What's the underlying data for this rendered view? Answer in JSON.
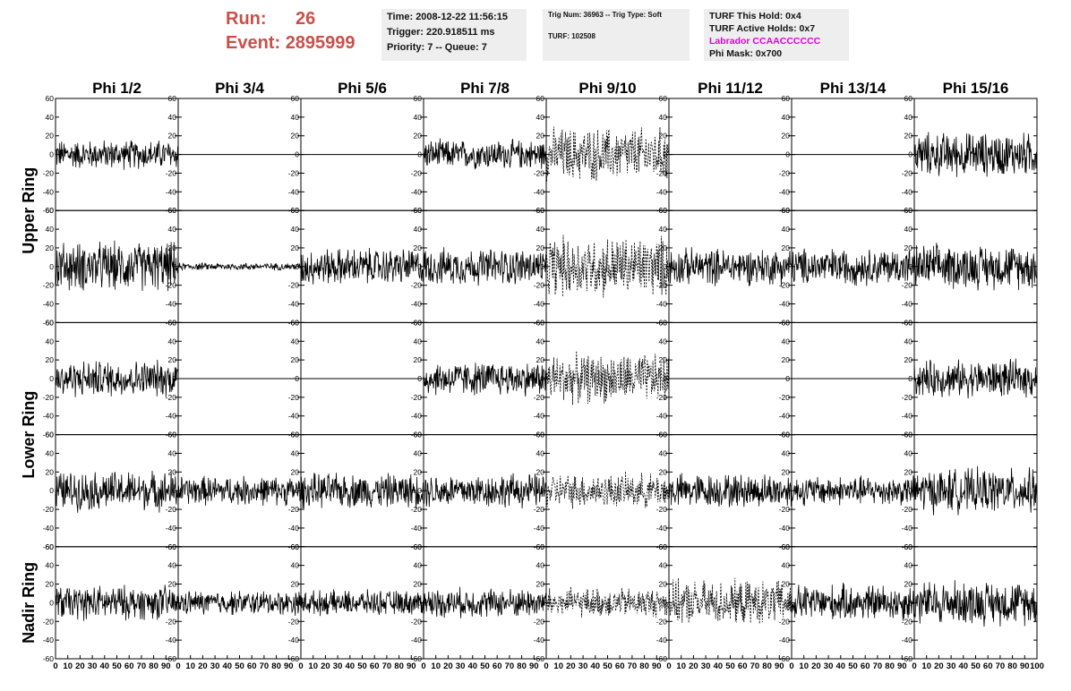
{
  "header": {
    "run_label": "Run:",
    "run_value": "26",
    "event_label": "Event:",
    "event_value": "2895999",
    "time_line": "Time: 2008-12-22 11:56:15",
    "trigger_line": "Trigger: 220.918511 ms",
    "priority_line": "Priority: 7 -- Queue: 7",
    "trig_num_line": "Trig Num: 36963 -- Trig Type: Soft",
    "turf_line": "TURF: 102508",
    "turf_hold_line": "TURF This Hold: 0x4",
    "turf_active_line": "TURF Active Holds: 0x7",
    "labrador_line": "Labrador CCAACCCCCC",
    "phi_mask_line": "Phi Mask: 0x700"
  },
  "colors": {
    "run_text": "#c9504a",
    "labrador_text": "#e000e0",
    "info_bg": "#eeeeee",
    "trace": "#000000"
  },
  "chart_data": {
    "type": "line",
    "columns": [
      "Phi 1/2",
      "Phi 3/4",
      "Phi 5/6",
      "Phi 7/8",
      "Phi 9/10",
      "Phi 11/12",
      "Phi 13/14",
      "Phi 15/16"
    ],
    "ring_labels": [
      "Upper Ring",
      "Lower Ring",
      "Nadir Ring"
    ],
    "ring_row_spans": [
      [
        0,
        1
      ],
      [
        2,
        3
      ],
      [
        4,
        4
      ]
    ],
    "xlim": [
      0,
      100
    ],
    "ylim": [
      -60,
      60
    ],
    "y_ticks": [
      -60,
      -40,
      -20,
      0,
      20,
      40,
      60
    ],
    "x_tick_labels": [
      "0",
      "10",
      "20",
      "30",
      "40",
      "50",
      "60",
      "70",
      "80",
      "90",
      "100"
    ],
    "grid": false,
    "amplitude_scale": [
      [
        12,
        0,
        0,
        12,
        22,
        0,
        0,
        18
      ],
      [
        20,
        3,
        15,
        15,
        25,
        15,
        15,
        18
      ],
      [
        15,
        0,
        0,
        14,
        20,
        0,
        0,
        15
      ],
      [
        16,
        12,
        14,
        14,
        14,
        14,
        12,
        18
      ],
      [
        14,
        10,
        10,
        12,
        12,
        18,
        15,
        18
      ]
    ],
    "dashed": [
      [
        false,
        false,
        false,
        false,
        true,
        false,
        false,
        false
      ],
      [
        false,
        false,
        false,
        false,
        true,
        false,
        false,
        false
      ],
      [
        false,
        false,
        false,
        false,
        true,
        false,
        false,
        false
      ],
      [
        false,
        false,
        false,
        false,
        true,
        false,
        false,
        false
      ],
      [
        false,
        false,
        false,
        false,
        true,
        true,
        false,
        false
      ]
    ]
  }
}
